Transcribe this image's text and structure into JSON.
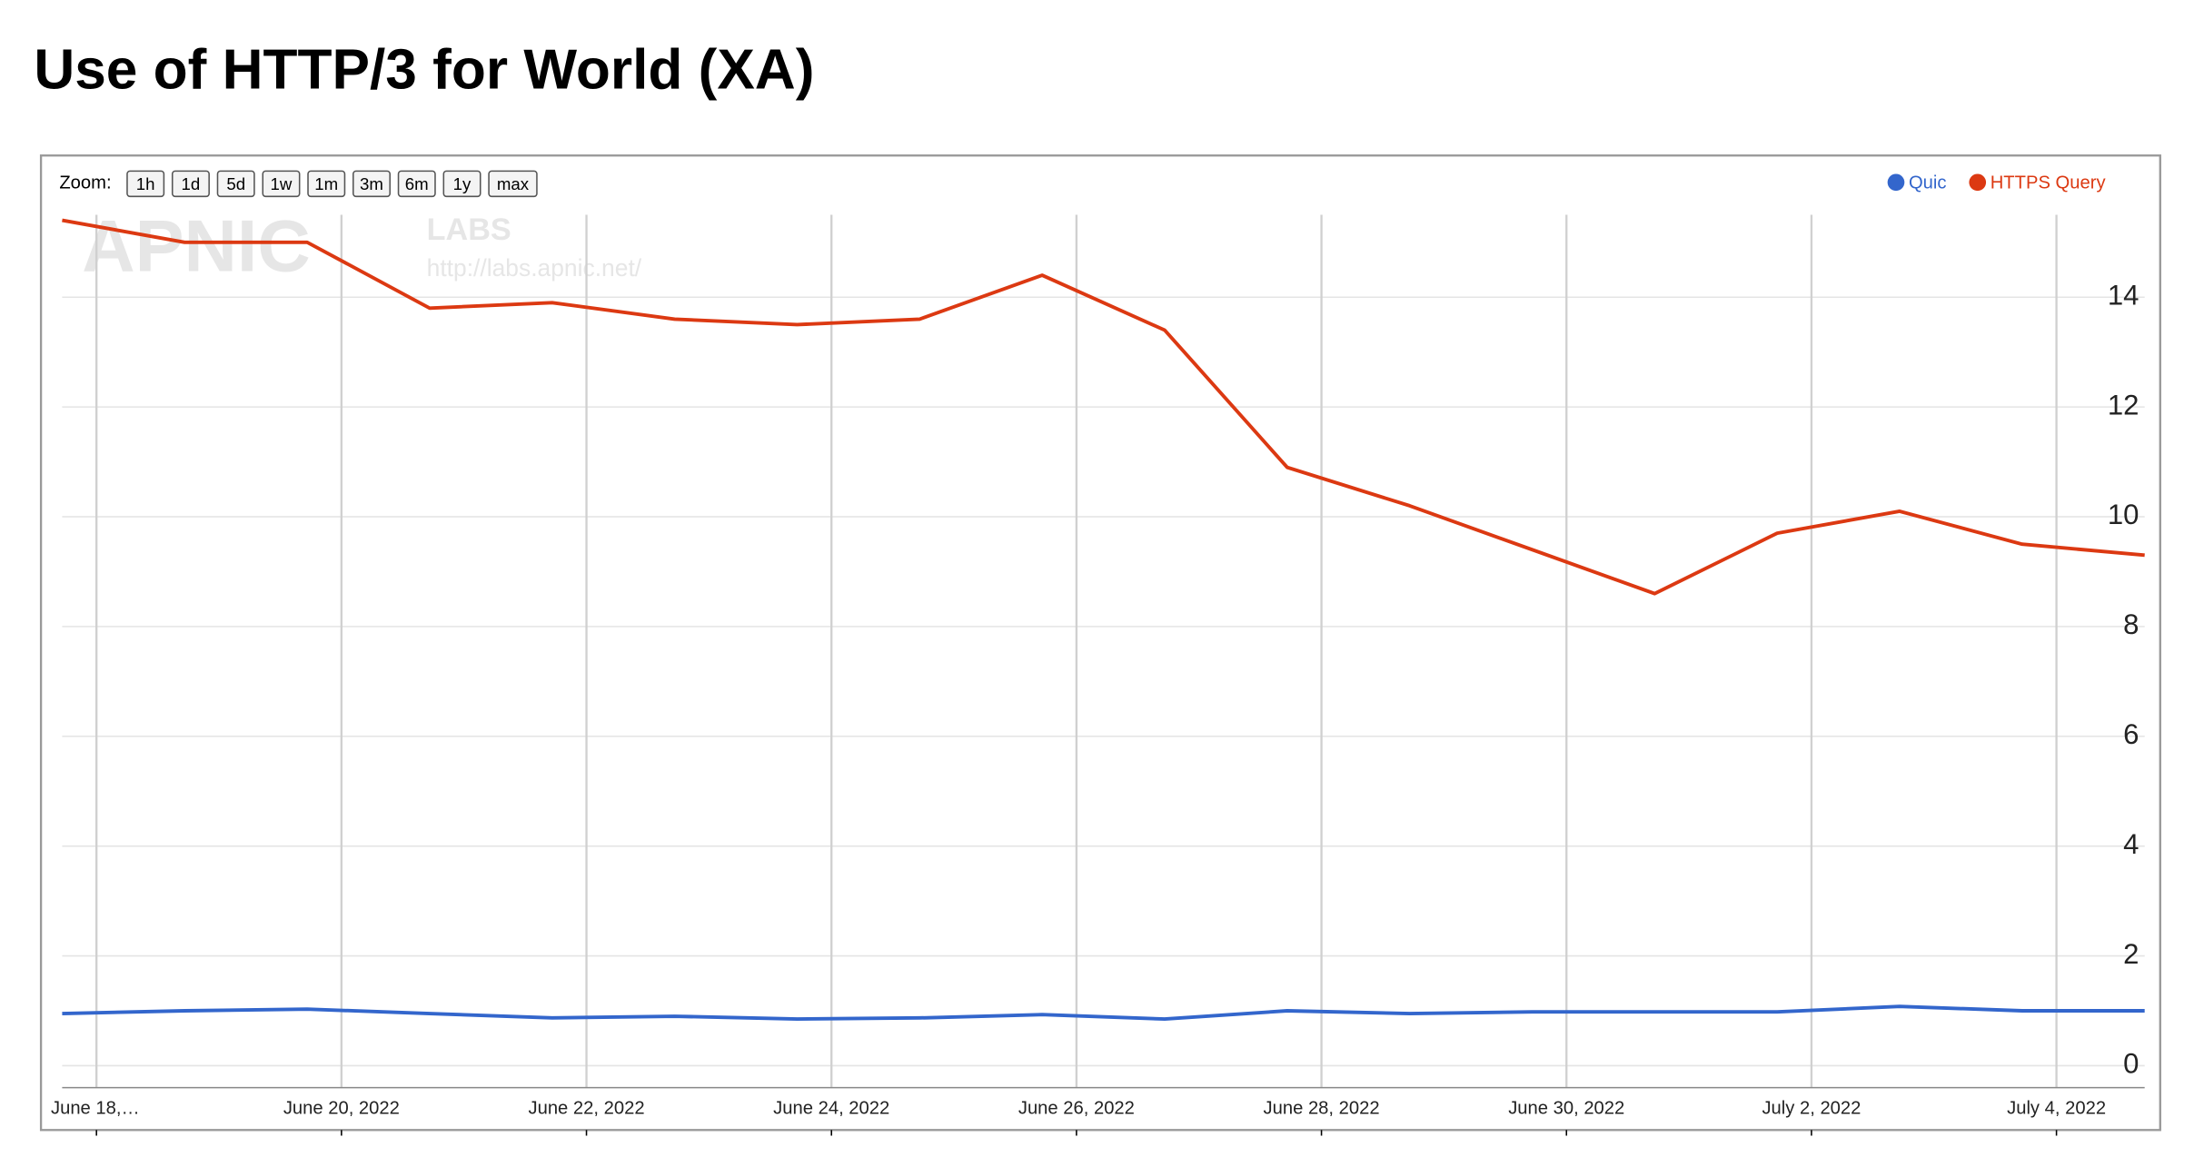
{
  "chart_data": {
    "type": "line",
    "title": "Use of HTTP/3 for World (XA)",
    "zoom_label": "Zoom:",
    "zoom_buttons": [
      "1h",
      "1d",
      "5d",
      "1w",
      "1m",
      "3m",
      "6m",
      "1y",
      "max"
    ],
    "watermark": [
      "APNIC",
      "LABS",
      "http://labs.apnic.net/"
    ],
    "x": [
      0,
      1,
      2,
      3,
      4,
      5,
      6,
      7,
      8,
      9,
      10,
      11,
      12,
      13,
      14,
      15,
      16,
      17
    ],
    "xlim": [
      0,
      17
    ],
    "xticks": [
      {
        "value": 0.28,
        "label": "June 18,…"
      },
      {
        "value": 2.28,
        "label": "June 20, 2022"
      },
      {
        "value": 4.28,
        "label": "June 22, 2022"
      },
      {
        "value": 6.28,
        "label": "June 24, 2022"
      },
      {
        "value": 8.28,
        "label": "June 26, 2022"
      },
      {
        "value": 10.28,
        "label": "June 28, 2022"
      },
      {
        "value": 12.28,
        "label": "June 30, 2022"
      },
      {
        "value": 14.28,
        "label": "July 2, 2022"
      },
      {
        "value": 16.28,
        "label": "July 4, 2022"
      }
    ],
    "ylim": [
      -0.4,
      15.5
    ],
    "yticks": [
      0,
      2,
      4,
      6,
      8,
      10,
      12,
      14
    ],
    "grid": true,
    "legend": "top-right",
    "series": [
      {
        "name": "Quic",
        "color": "#3366cc",
        "values": [
          0.95,
          1.0,
          1.03,
          0.95,
          0.87,
          0.9,
          0.85,
          0.87,
          0.93,
          0.85,
          1.0,
          0.95,
          0.98,
          0.98,
          0.98,
          1.08,
          1.0,
          1.0
        ]
      },
      {
        "name": "HTTPS Query",
        "color": "#dc3912",
        "values": [
          15.4,
          15.0,
          15.0,
          13.8,
          13.9,
          13.6,
          13.5,
          13.6,
          14.4,
          13.4,
          10.9,
          10.2,
          9.4,
          8.6,
          9.7,
          10.1,
          9.5,
          9.3
        ]
      }
    ]
  }
}
